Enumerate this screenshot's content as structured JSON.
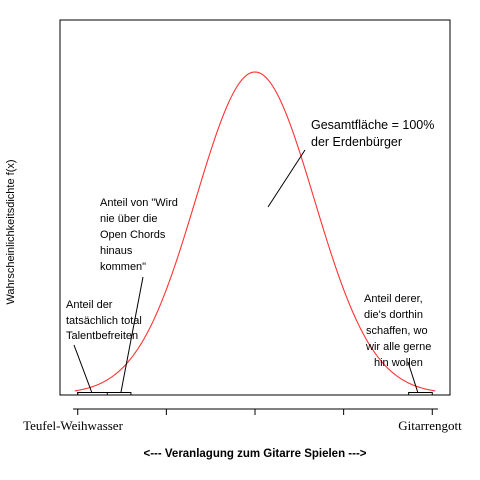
{
  "chart_data": {
    "type": "line",
    "title": "",
    "xlabel": "<---  Veranlagung zum Gitarre Spielen --->",
    "ylabel": "Wahrscheinlichkeitsdichte f(x)",
    "xlim": [
      -3.3,
      3.3
    ],
    "x_tick_values": [
      -3,
      -1.5,
      0,
      1.5,
      3
    ],
    "x_tick_labels": [
      "Teufel-Weihwasser",
      "",
      "",
      "",
      "Gitarrengott"
    ],
    "grid": false,
    "series": [
      {
        "distribution": "normal",
        "mean": 0,
        "sd": 1,
        "color": "#ff3333"
      }
    ],
    "annotations": {
      "total": [
        "Gesamtfläche = 100%",
        "der Erdenbürger"
      ],
      "open_chords": [
        "Anteil von \"Wird",
        "nie über die",
        "Open Chords",
        "hinaus",
        "kommen\""
      ],
      "talentless": [
        "Anteil der",
        "tatsächlich total",
        "Talentbefreiten"
      ],
      "gods": [
        "Anteil derer,",
        "die's dorthin",
        "schaffen, wo",
        "wir alle gerne",
        "hin wollen"
      ]
    },
    "highlight_ranges": [
      [
        -3,
        -2.5
      ],
      [
        -3,
        -2.1
      ],
      [
        2.6,
        3
      ]
    ]
  }
}
